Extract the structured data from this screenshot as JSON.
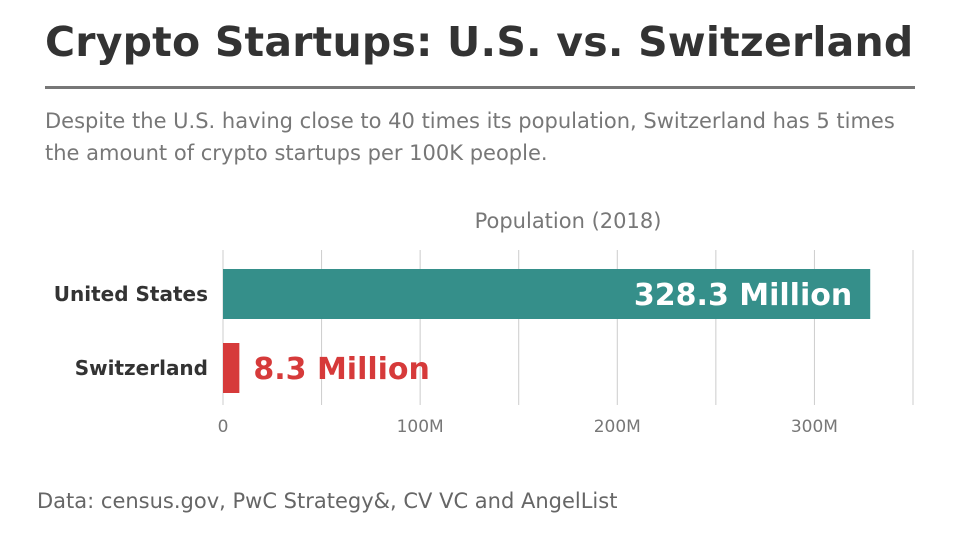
{
  "header": {
    "title": "Crypto Startups: U.S. vs. Switzerland",
    "subtitle": "Despite the U.S. having close to 40 times its population, Switzerland has 5 times the amount of crypto startups per 100K people."
  },
  "footer": {
    "source": "Data: census.gov, PwC Strategy&, CV VC and AngelList"
  },
  "chart_data": {
    "type": "bar",
    "orientation": "horizontal",
    "title": "Population (2018)",
    "categories": [
      "United States",
      "Switzerland"
    ],
    "values": [
      328.3,
      8.3
    ],
    "value_labels": [
      "328.3 Million",
      "8.3 Million"
    ],
    "unit": "Million",
    "colors": [
      "#358f8a",
      "#d63a3a"
    ],
    "xlim": [
      0,
      350
    ],
    "xticks": [
      0,
      100,
      200,
      300
    ],
    "xtick_labels": [
      "0",
      "100M",
      "200M",
      "300M"
    ],
    "grid_step": 50,
    "grid": true,
    "legend": "none"
  }
}
